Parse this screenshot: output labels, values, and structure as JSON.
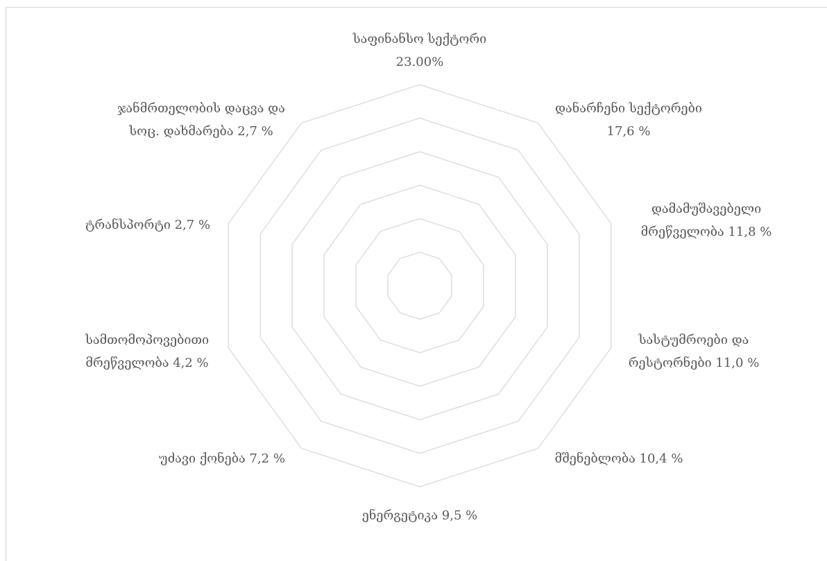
{
  "chart_data": {
    "type": "radar",
    "categories": [
      [
        "საფინანსო სექტორი",
        "23.00%"
      ],
      [
        "დანარჩენი სექტორები",
        "17,6 %"
      ],
      [
        "დამამუშავებელი",
        "მრეწველობა 11,8 %"
      ],
      [
        "სასტუმროები და",
        "რესტორნები 11,0 %"
      ],
      [
        "მშენებლობა  10,4 %"
      ],
      [
        "ენერგეტიკა 9,5 %"
      ],
      [
        "უძავი ქონება  7,2 %"
      ],
      [
        "სამთომოპოვებითი",
        "მრეწველობა 4,2 %"
      ],
      [
        "ტრანსპორტი 2,7 %"
      ],
      [
        "ჯანმრთელობის დაცვა და",
        "სოც. დახმარება 2,7 %"
      ]
    ],
    "grid": true
  }
}
